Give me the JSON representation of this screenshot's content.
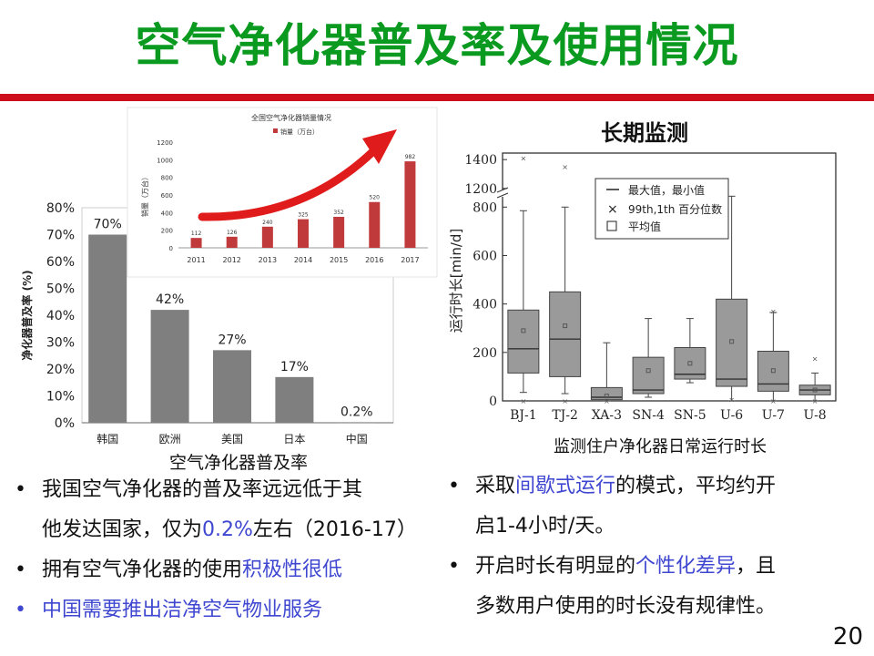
{
  "slide": {
    "title": "空气净化器普及率及使用情况",
    "page_number": "20",
    "accent_color": "#cc0f1a",
    "title_color": "#0b9a20",
    "highlight_color": "#3f47d1"
  },
  "bullets_left": [
    {
      "segments": [
        {
          "text": "我国空气净化器的普及率远远低于其",
          "hl": false
        }
      ]
    },
    {
      "segments": [
        {
          "text": "他发达国家，仅为",
          "hl": false
        },
        {
          "text": "0.2%",
          "hl": true
        },
        {
          "text": "左右（2016-17）",
          "hl": false
        }
      ],
      "continuation": true
    },
    {
      "segments": [
        {
          "text": "拥有空气净化器的使用",
          "hl": false
        },
        {
          "text": "积极性很低",
          "hl": true
        }
      ]
    },
    {
      "segments": [
        {
          "text": "中国需要推出洁净空气物业服务",
          "hl": true
        }
      ],
      "bullet_hl": true
    }
  ],
  "bullets_right": [
    {
      "segments": [
        {
          "text": "采取",
          "hl": false
        },
        {
          "text": "间歇式运行",
          "hl": true
        },
        {
          "text": "的模式，平均约开",
          "hl": false
        }
      ]
    },
    {
      "segments": [
        {
          "text": "启1-4小时/天。",
          "hl": false
        }
      ],
      "continuation": true
    },
    {
      "segments": [
        {
          "text": "开启时长有明显的",
          "hl": false
        },
        {
          "text": "个性化差异",
          "hl": true
        },
        {
          "text": "，且",
          "hl": false
        }
      ]
    },
    {
      "segments": [
        {
          "text": "多数用户使用的时长没有规律性。",
          "hl": false
        }
      ],
      "continuation": true
    }
  ],
  "chart_data": [
    {
      "type": "bar",
      "title": "",
      "caption": "空气净化器普及率",
      "ylabel": "净化器普及率 (%)",
      "categories": [
        "韩国",
        "欧洲",
        "美国",
        "日本",
        "中国"
      ],
      "values": [
        70,
        42,
        27,
        17,
        0.2
      ],
      "value_labels": [
        "70%",
        "42%",
        "27%",
        "17%",
        "0.2%"
      ],
      "ylim": [
        0,
        80
      ],
      "yticks": [
        "0%",
        "10%",
        "20%",
        "30%",
        "40%",
        "50%",
        "60%",
        "70%",
        "80%"
      ],
      "bar_color": "#7f7f7f",
      "grid": false
    },
    {
      "type": "bar",
      "title": "全国空气净化器销量情况",
      "legend": "销量（万台）",
      "ylabel": "销量（万台）",
      "categories": [
        "2011",
        "2012",
        "2013",
        "2014",
        "2015",
        "2016",
        "2017"
      ],
      "values": [
        112,
        126,
        240,
        325,
        352,
        520,
        982
      ],
      "value_labels": [
        "112",
        "126",
        "240",
        "325",
        "352",
        "520",
        "982"
      ],
      "ylim": [
        0,
        1200
      ],
      "yticks": [
        "0",
        "200",
        "400",
        "600",
        "800",
        "1000",
        "1200"
      ],
      "bar_color": "#c0393b",
      "arrow_color": "#e01b1b"
    },
    {
      "type": "box",
      "title": "长期监测",
      "caption": "监测住户净化器日常运行时长",
      "ylabel": "运行时长[min/d]",
      "categories": [
        "BJ-1",
        "TJ-2",
        "XA-3",
        "SN-4",
        "SN-5",
        "U-6",
        "U-7",
        "U-8"
      ],
      "legend": [
        "最大值，最小值",
        "99th,1th 百分位数",
        "平均值"
      ],
      "yticks": [
        "0",
        "200",
        "400",
        "600",
        "800",
        "1200",
        "1400"
      ],
      "ylim": [
        0,
        1400
      ],
      "axis_break": [
        850,
        1180
      ],
      "boxes": [
        {
          "min": 35,
          "q1": 115,
          "median": 215,
          "q3": 375,
          "max": 785,
          "mean": 290,
          "p99": 1410,
          "p1": 0
        },
        {
          "min": 30,
          "q1": 100,
          "median": 255,
          "q3": 450,
          "max": 800,
          "mean": 310,
          "p99": 1350,
          "p1": 0
        },
        {
          "min": 0,
          "q1": 5,
          "median": 15,
          "q3": 55,
          "max": 240,
          "mean": 20,
          "p99": null,
          "p1": 0
        },
        {
          "min": 15,
          "q1": 30,
          "median": 45,
          "q3": 180,
          "max": 340,
          "mean": 125,
          "p99": null,
          "p1": null
        },
        {
          "min": 75,
          "q1": 90,
          "median": 110,
          "q3": 220,
          "max": 340,
          "mean": 155,
          "p99": null,
          "p1": null
        },
        {
          "min": 0,
          "q1": 60,
          "median": 90,
          "q3": 420,
          "max": 845,
          "mean": 245,
          "p99": null,
          "p1": 5
        },
        {
          "min": 0,
          "q1": 40,
          "median": 70,
          "q3": 205,
          "max": 365,
          "mean": 125,
          "p99": 370,
          "p1": 0
        },
        {
          "min": 0,
          "q1": 25,
          "median": 45,
          "q3": 65,
          "max": 115,
          "mean": 45,
          "p99": 175,
          "p1": 0
        }
      ]
    }
  ]
}
